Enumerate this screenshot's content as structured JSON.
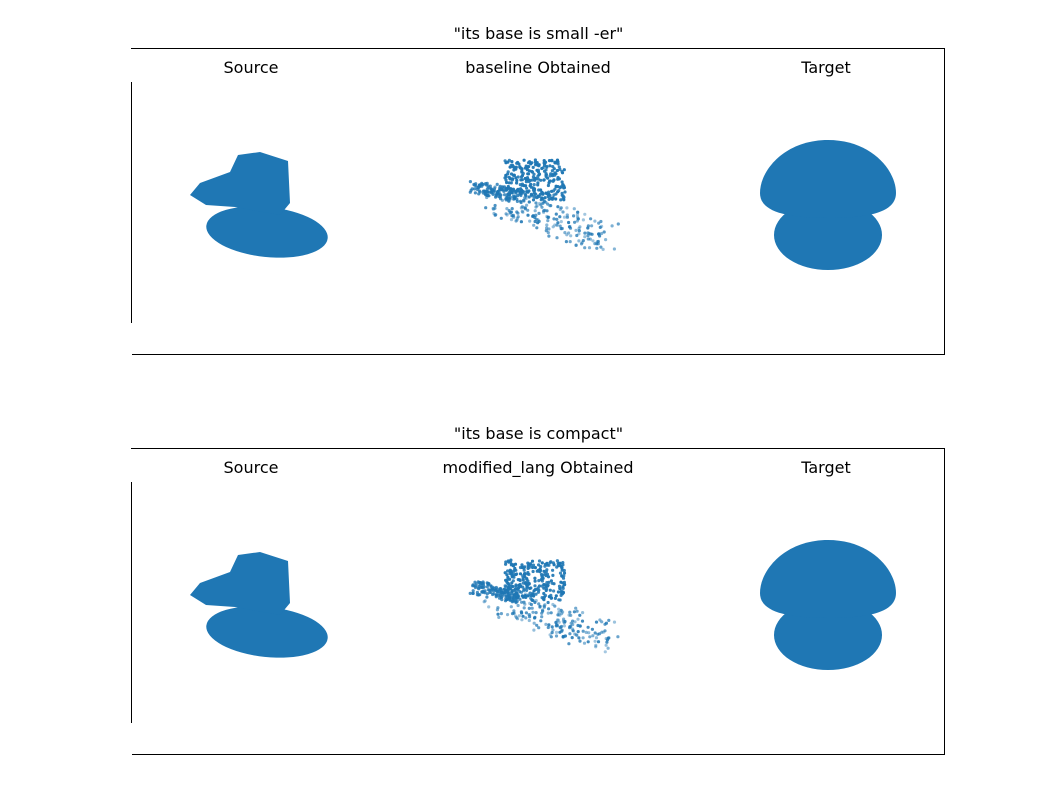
{
  "colors": {
    "points": "#1f77b4"
  },
  "chart_data": [
    {
      "type": "scatter",
      "title": "\"its base is small -er\"",
      "subplots": [
        "Source",
        "baseline Obtained",
        "Target"
      ],
      "axes_visible": false
    },
    {
      "type": "scatter",
      "title": "\"its base is compact\"",
      "subplots": [
        "Source",
        "modified_lang Obtained",
        "Target"
      ],
      "axes_visible": false
    }
  ]
}
